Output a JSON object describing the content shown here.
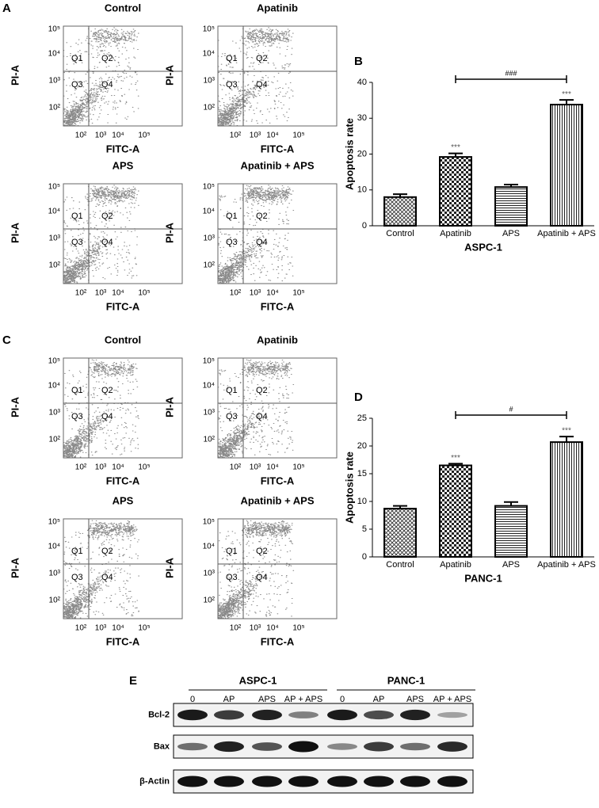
{
  "flow_figure": {
    "panels": [
      {
        "label": "A",
        "titles": [
          "Control",
          "Apatinib",
          "APS",
          "Apatinib + APS"
        ]
      },
      {
        "label": "C",
        "titles": [
          "Control",
          "Apatinib",
          "APS",
          "Apatinib + APS"
        ]
      }
    ],
    "x_label": "FITC-A",
    "y_label": "PI-A",
    "ticks": [
      "10²",
      "10³",
      "10⁴",
      "10⁵"
    ],
    "quadrants": [
      "Q1",
      "Q2",
      "Q3",
      "Q4"
    ]
  },
  "chart_data": [
    {
      "type": "bar",
      "panel_label": "B",
      "x_label": "ASPC-1",
      "y_label": "Apoptosis rate",
      "categories": [
        "Control",
        "Apatinib",
        "APS",
        "Apatinib + APS"
      ],
      "values": [
        8,
        19.2,
        10.8,
        33.8
      ],
      "errors": [
        0.8,
        1.0,
        0.7,
        1.3
      ],
      "significance_labels": [
        null,
        "***",
        null,
        "***"
      ],
      "bracket": {
        "label": "###",
        "from": "Apatinib",
        "to": "Apatinib + APS"
      },
      "patterns": [
        "crosshatch",
        "checker",
        "horizontal",
        "vertical"
      ],
      "color": "#000000",
      "ylim": [
        0,
        40
      ],
      "yticks": [
        0,
        10,
        20,
        30,
        40
      ]
    },
    {
      "type": "bar",
      "panel_label": "D",
      "x_label": "PANC-1",
      "y_label": "Apoptosis rate",
      "categories": [
        "Control",
        "Apatinib",
        "APS",
        "Apatinib + APS"
      ],
      "values": [
        8.7,
        16.5,
        9.2,
        20.7
      ],
      "errors": [
        0.5,
        0.3,
        0.7,
        1.0
      ],
      "significance_labels": [
        null,
        "***",
        null,
        "***"
      ],
      "bracket": {
        "label": "#",
        "from": "Apatinib",
        "to": "Apatinib + APS"
      },
      "patterns": [
        "crosshatch",
        "checker",
        "horizontal",
        "vertical"
      ],
      "color": "#000000",
      "ylim": [
        0,
        25
      ],
      "yticks": [
        0,
        5,
        10,
        15,
        20,
        25
      ]
    }
  ],
  "blot": {
    "label": "E",
    "groups": [
      {
        "name": "ASPC-1",
        "lanes": [
          "0",
          "AP",
          "APS",
          "AP + APS"
        ]
      },
      {
        "name": "PANC-1",
        "lanes": [
          "0",
          "AP",
          "APS",
          "AP + APS"
        ]
      }
    ],
    "rows": [
      "Bcl-2",
      "Bax",
      "β-Actin"
    ]
  }
}
